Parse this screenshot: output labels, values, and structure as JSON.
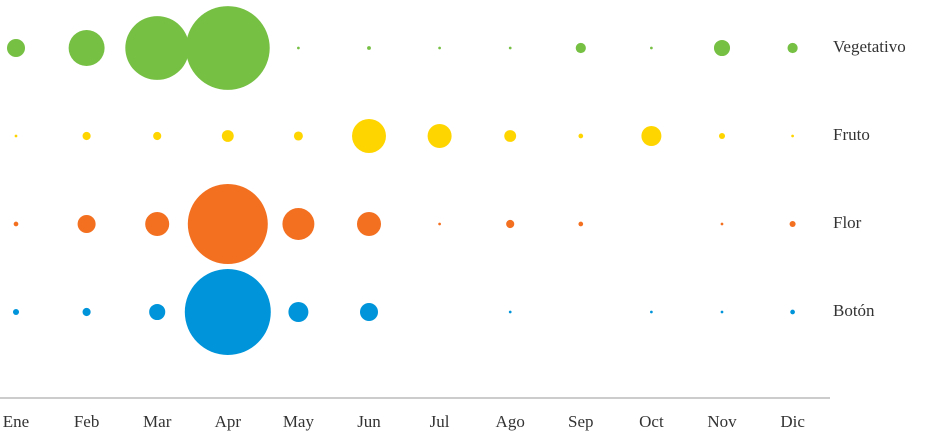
{
  "chart_data": {
    "type": "bubble",
    "categories": [
      "Ene",
      "Feb",
      "Mar",
      "Apr",
      "May",
      "Jun",
      "Jul",
      "Ago",
      "Sep",
      "Oct",
      "Nov",
      "Dic"
    ],
    "series": [
      {
        "name": "Vegetativo",
        "color": "#76c044",
        "values": [
          4.4,
          17.5,
          55,
          95,
          0.1,
          0.2,
          0.1,
          0.1,
          1.4,
          0.1,
          3.5,
          1.4
        ]
      },
      {
        "name": "Fruto",
        "color": "#ffd500",
        "values": [
          0.1,
          0.9,
          0.9,
          1.9,
          1.1,
          15.6,
          7.8,
          1.9,
          0.3,
          5.4,
          0.5,
          0.1
        ]
      },
      {
        "name": "Flor",
        "color": "#f37021",
        "values": [
          0.3,
          4.4,
          7.8,
          86.5,
          13.8,
          7.8,
          0.1,
          0.9,
          0.3,
          null,
          0.1,
          0.5
        ]
      },
      {
        "name": "Botón",
        "color": "#0095da",
        "values": [
          0.5,
          0.9,
          3.5,
          100,
          5.4,
          4.4,
          null,
          0.1,
          null,
          0.1,
          0.1,
          0.3
        ]
      }
    ]
  }
}
